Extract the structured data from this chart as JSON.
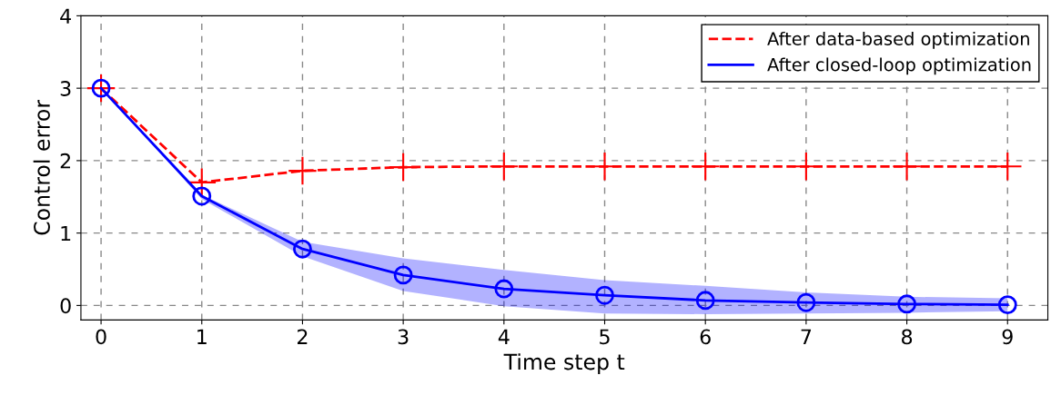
{
  "chart_data": {
    "type": "line",
    "xlabel": "Time step t",
    "ylabel": "Control error",
    "x": [
      0,
      1,
      2,
      3,
      4,
      5,
      6,
      7,
      8,
      9
    ],
    "series": [
      {
        "name": "After data-based optimization",
        "color": "#ff0000",
        "line_style": "dashed",
        "marker": "cross",
        "values": [
          3,
          1.7,
          1.86,
          1.91,
          1.92,
          1.92,
          1.92,
          1.92,
          1.92,
          1.92
        ]
      },
      {
        "name": "After closed-loop optimization",
        "color": "#0000ff",
        "line_style": "solid",
        "marker": "circle",
        "values": [
          3,
          1.51,
          0.78,
          0.42,
          0.23,
          0.14,
          0.07,
          0.04,
          0.02,
          0.01
        ],
        "lower": [
          3,
          1.47,
          0.68,
          0.2,
          -0.01,
          -0.11,
          -0.12,
          -0.11,
          -0.1,
          -0.08
        ],
        "upper": [
          3,
          1.53,
          0.88,
          0.65,
          0.49,
          0.35,
          0.27,
          0.18,
          0.12,
          0.1
        ]
      }
    ],
    "xlim": [
      -0.2,
      9.4
    ],
    "ylim": [
      -0.2,
      4
    ],
    "xticks": [
      0,
      1,
      2,
      3,
      4,
      5,
      6,
      7,
      8,
      9
    ],
    "yticks": [
      0,
      1,
      2,
      3,
      4
    ],
    "grid": true,
    "legend": "top right"
  }
}
